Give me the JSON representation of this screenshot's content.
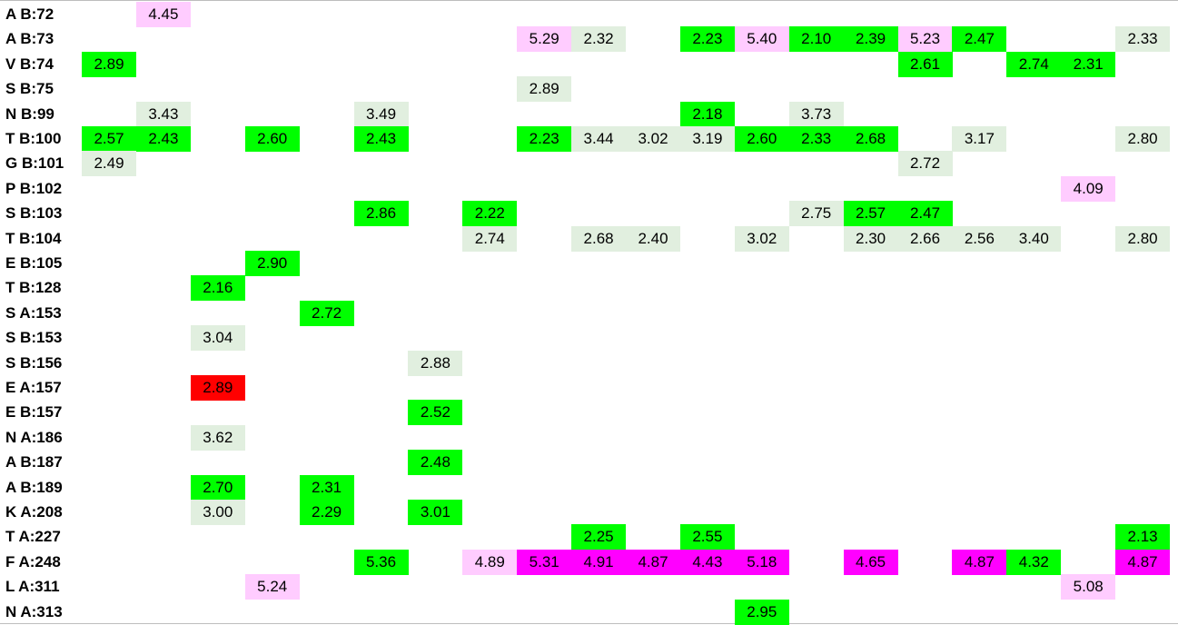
{
  "colors": {
    "g": "#00ff00",
    "l": "#e1efdf",
    "p": "#ffccff",
    "m": "#ff00ff",
    "r": "#ff0000"
  },
  "rows": [
    {
      "label": "A B:72",
      "cells": [
        [
          1,
          "4.45",
          "p"
        ]
      ]
    },
    {
      "label": "A B:73",
      "cells": [
        [
          8,
          "5.29",
          "p"
        ],
        [
          9,
          "2.32",
          "l"
        ],
        [
          11,
          "2.23",
          "g"
        ],
        [
          12,
          "5.40",
          "p"
        ],
        [
          13,
          "2.10",
          "g"
        ],
        [
          14,
          "2.39",
          "g"
        ],
        [
          15,
          "5.23",
          "p"
        ],
        [
          16,
          "2.47",
          "g"
        ],
        [
          19,
          "2.33",
          "l"
        ]
      ]
    },
    {
      "label": "V B:74",
      "cells": [
        [
          0,
          "2.89",
          "g"
        ],
        [
          15,
          "2.61",
          "g"
        ],
        [
          17,
          "2.74",
          "g"
        ],
        [
          18,
          "2.31",
          "g"
        ]
      ]
    },
    {
      "label": "S B:75",
      "cells": [
        [
          8,
          "2.89",
          "l"
        ]
      ]
    },
    {
      "label": "N B:99",
      "cells": [
        [
          1,
          "3.43",
          "l"
        ],
        [
          5,
          "3.49",
          "l"
        ],
        [
          11,
          "2.18",
          "g"
        ],
        [
          13,
          "3.73",
          "l"
        ]
      ]
    },
    {
      "label": "T B:100",
      "cells": [
        [
          0,
          "2.57",
          "g"
        ],
        [
          1,
          "2.43",
          "g"
        ],
        [
          3,
          "2.60",
          "g"
        ],
        [
          5,
          "2.43",
          "g"
        ],
        [
          8,
          "2.23",
          "g"
        ],
        [
          9,
          "3.44",
          "l"
        ],
        [
          10,
          "3.02",
          "l"
        ],
        [
          11,
          "3.19",
          "l"
        ],
        [
          12,
          "2.60",
          "g"
        ],
        [
          13,
          "2.33",
          "g"
        ],
        [
          14,
          "2.68",
          "g"
        ],
        [
          16,
          "3.17",
          "l"
        ],
        [
          19,
          "2.80",
          "l"
        ]
      ]
    },
    {
      "label": "G B:101",
      "cells": [
        [
          0,
          "2.49",
          "l"
        ],
        [
          15,
          "2.72",
          "l"
        ]
      ]
    },
    {
      "label": "P B:102",
      "cells": [
        [
          18,
          "4.09",
          "p"
        ]
      ]
    },
    {
      "label": "S B:103",
      "cells": [
        [
          5,
          "2.86",
          "g"
        ],
        [
          7,
          "2.22",
          "g"
        ],
        [
          13,
          "2.75",
          "l"
        ],
        [
          14,
          "2.57",
          "g"
        ],
        [
          15,
          "2.47",
          "g"
        ]
      ]
    },
    {
      "label": "T B:104",
      "cells": [
        [
          7,
          "2.74",
          "l"
        ],
        [
          9,
          "2.68",
          "l"
        ],
        [
          10,
          "2.40",
          "l"
        ],
        [
          12,
          "3.02",
          "l"
        ],
        [
          14,
          "2.30",
          "l"
        ],
        [
          15,
          "2.66",
          "l"
        ],
        [
          16,
          "2.56",
          "l"
        ],
        [
          17,
          "3.40",
          "l"
        ],
        [
          19,
          "2.80",
          "l"
        ]
      ]
    },
    {
      "label": "E B:105",
      "cells": [
        [
          3,
          "2.90",
          "g"
        ]
      ]
    },
    {
      "label": "T B:128",
      "cells": [
        [
          2,
          "2.16",
          "g"
        ]
      ]
    },
    {
      "label": "S A:153",
      "cells": [
        [
          4,
          "2.72",
          "g"
        ]
      ]
    },
    {
      "label": "S B:153",
      "cells": [
        [
          2,
          "3.04",
          "l"
        ]
      ]
    },
    {
      "label": "S B:156",
      "cells": [
        [
          6,
          "2.88",
          "l"
        ]
      ]
    },
    {
      "label": "E A:157",
      "cells": [
        [
          2,
          "2.89",
          "r"
        ]
      ]
    },
    {
      "label": "E B:157",
      "cells": [
        [
          6,
          "2.52",
          "g"
        ]
      ]
    },
    {
      "label": "N A:186",
      "cells": [
        [
          2,
          "3.62",
          "l"
        ]
      ]
    },
    {
      "label": "A B:187",
      "cells": [
        [
          6,
          "2.48",
          "g"
        ]
      ]
    },
    {
      "label": "A B:189",
      "cells": [
        [
          2,
          "2.70",
          "g"
        ],
        [
          4,
          "2.31",
          "g"
        ]
      ]
    },
    {
      "label": "K A:208",
      "cells": [
        [
          2,
          "3.00",
          "l"
        ],
        [
          4,
          "2.29",
          "g"
        ],
        [
          6,
          "3.01",
          "g"
        ]
      ]
    },
    {
      "label": "T A:227",
      "cells": [
        [
          9,
          "2.25",
          "g"
        ],
        [
          11,
          "2.55",
          "g"
        ],
        [
          19,
          "2.13",
          "g"
        ]
      ]
    },
    {
      "label": "F A:248",
      "cells": [
        [
          5,
          "5.36",
          "g"
        ],
        [
          7,
          "4.89",
          "p"
        ],
        [
          8,
          "5.31",
          "m"
        ],
        [
          9,
          "4.91",
          "m"
        ],
        [
          10,
          "4.87",
          "m"
        ],
        [
          11,
          "4.43",
          "m"
        ],
        [
          12,
          "5.18",
          "m"
        ],
        [
          14,
          "4.65",
          "m"
        ],
        [
          16,
          "4.87",
          "m"
        ],
        [
          17,
          "4.32",
          "g"
        ],
        [
          19,
          "4.87",
          "m"
        ]
      ]
    },
    {
      "label": "L A:311",
      "cells": [
        [
          3,
          "5.24",
          "p"
        ],
        [
          18,
          "5.08",
          "p"
        ]
      ]
    },
    {
      "label": "N A:313",
      "cells": [
        [
          12,
          "2.95",
          "g"
        ]
      ]
    }
  ]
}
